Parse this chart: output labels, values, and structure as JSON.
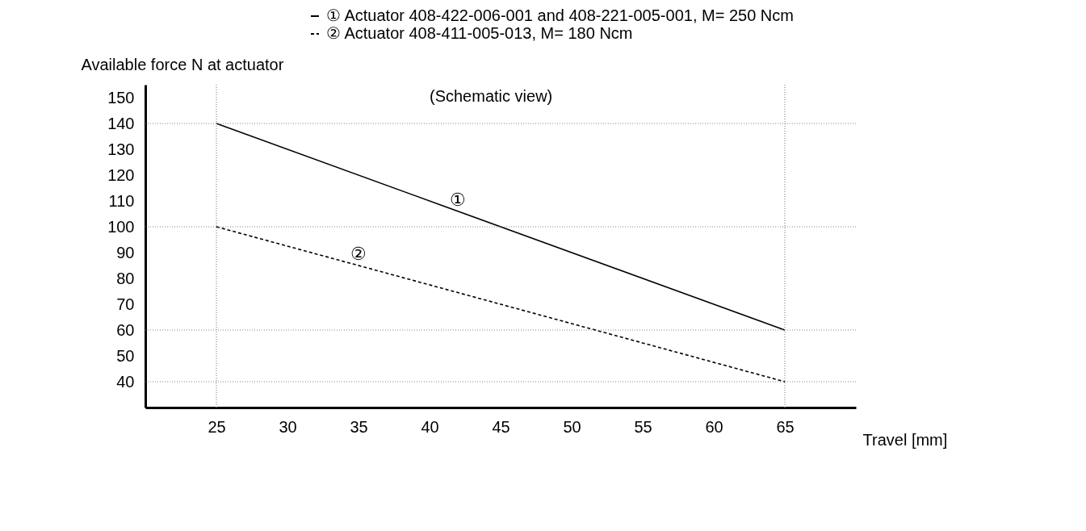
{
  "chart_data": {
    "type": "line",
    "xlabel": "Travel [mm]",
    "ylabel": "Available force N at actuator",
    "x": [
      25,
      65
    ],
    "series": [
      {
        "name": "① Actuator 408-422-006-001 and 408-221-005-001, M= 250 Ncm",
        "color": "#000000",
        "line_style": "solid",
        "values": [
          140,
          60
        ]
      },
      {
        "name": "② Actuator 408-411-005-013, M= 180 Ncm",
        "color": "#000000",
        "line_style": "dashed",
        "values": [
          100,
          40
        ]
      }
    ],
    "xlim": [
      20,
      70
    ],
    "xticks": [
      25,
      30,
      35,
      40,
      45,
      50,
      55,
      60,
      65
    ],
    "ylim": [
      30,
      155
    ],
    "yticks": [
      40,
      50,
      60,
      70,
      80,
      90,
      100,
      110,
      120,
      130,
      140,
      150
    ],
    "ref_lines": [
      {
        "axis": "x",
        "value": 25,
        "color": "#888888",
        "line_style": "dotted"
      },
      {
        "axis": "x",
        "value": 65,
        "color": "#888888",
        "line_style": "dotted"
      },
      {
        "axis": "y",
        "value": 140,
        "color": "#888888",
        "line_style": "dotted"
      },
      {
        "axis": "y",
        "value": 100,
        "color": "#888888",
        "line_style": "dotted"
      },
      {
        "axis": "y",
        "value": 60,
        "color": "#888888",
        "line_style": "dotted"
      },
      {
        "axis": "y",
        "value": 40,
        "color": "#888888",
        "line_style": "dotted"
      }
    ],
    "annotations": [
      "(Schematic view)",
      {
        "text": "①",
        "x": 42,
        "y": 106
      },
      {
        "text": "②",
        "x": 35,
        "y": 85
      }
    ],
    "grid": false,
    "legend": "top",
    "marker": "none"
  }
}
